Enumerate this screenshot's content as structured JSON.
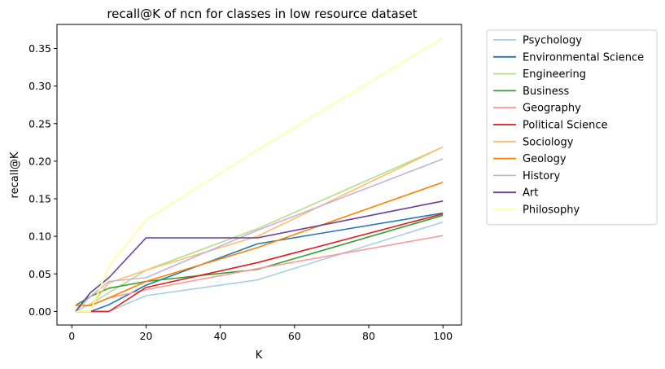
{
  "chart_data": {
    "type": "line",
    "title": "recall@K of ncn for classes in low resource dataset",
    "xlabel": "K",
    "ylabel": "recall@K",
    "xlim": [
      -4,
      105
    ],
    "ylim": [
      -0.018,
      0.382
    ],
    "xticks": [
      0,
      20,
      40,
      60,
      80,
      100
    ],
    "xtick_labels": [
      "0",
      "20",
      "40",
      "60",
      "80",
      "100"
    ],
    "yticks": [
      0.0,
      0.05,
      0.1,
      0.15,
      0.2,
      0.25,
      0.3,
      0.35
    ],
    "ytick_labels": [
      "0.00",
      "0.05",
      "0.10",
      "0.15",
      "0.20",
      "0.25",
      "0.30",
      "0.35"
    ],
    "x": [
      1,
      5,
      10,
      20,
      50,
      100
    ],
    "grid": false,
    "legend_position": "outside-right",
    "series": [
      {
        "name": "Psychology",
        "color": "#a6cee3",
        "values": [
          0.0,
          0.0,
          0.0,
          0.021,
          0.042,
          0.119
        ]
      },
      {
        "name": "Environmental Science",
        "color": "#1f78b4",
        "values": [
          0.0,
          0.0,
          0.009,
          0.035,
          0.09,
          0.131
        ]
      },
      {
        "name": "Engineering",
        "color": "#b2df8a",
        "values": [
          0.0,
          0.01,
          0.025,
          0.055,
          0.11,
          0.219
        ]
      },
      {
        "name": "Business",
        "color": "#33a02c",
        "values": [
          0.008,
          0.02,
          0.031,
          0.04,
          0.056,
          0.128
        ]
      },
      {
        "name": "Geography",
        "color": "#fb9a99",
        "values": [
          0.008,
          0.008,
          0.018,
          0.029,
          0.057,
          0.101
        ]
      },
      {
        "name": "Political Science",
        "color": "#e31a1c",
        "values": [
          0.0,
          0.0,
          0.0,
          0.032,
          0.065,
          0.13
        ]
      },
      {
        "name": "Sociology",
        "color": "#fdbf6f",
        "values": [
          0.008,
          0.008,
          0.038,
          0.055,
          0.1,
          0.219
        ]
      },
      {
        "name": "Geology",
        "color": "#ff7f00",
        "values": [
          0.008,
          0.008,
          0.018,
          0.04,
          0.085,
          0.172
        ]
      },
      {
        "name": "History",
        "color": "#cab2d6",
        "values": [
          0.0,
          0.02,
          0.04,
          0.045,
          0.108,
          0.203
        ]
      },
      {
        "name": "Art",
        "color": "#6a3d9a",
        "values": [
          0.0,
          0.025,
          0.045,
          0.098,
          0.098,
          0.147
        ]
      },
      {
        "name": "Philosophy",
        "color": "#ffff99",
        "values": [
          0.0,
          0.0,
          0.06,
          0.122,
          0.215,
          0.364
        ]
      }
    ]
  }
}
